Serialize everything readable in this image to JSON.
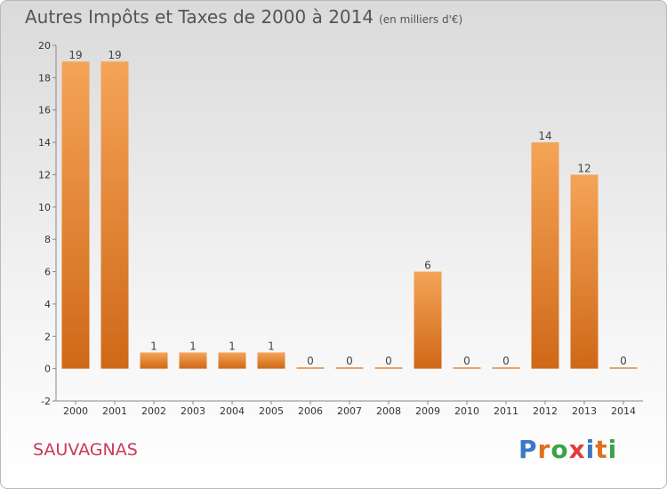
{
  "title": "Autres Impôts et Taxes de 2000 à 2014",
  "unit": "(en milliers d'€)",
  "commune": "SAUVAGNAS",
  "logo": {
    "letters": [
      "P",
      "r",
      "o",
      "x",
      "i",
      "t",
      "i"
    ],
    "colors": [
      "#3a78c8",
      "#e0701e",
      "#3aa346",
      "#e33d3d",
      "#3a78c8",
      "#e0701e",
      "#3aa346"
    ]
  },
  "chart_data": {
    "type": "bar",
    "categories": [
      "2000",
      "2001",
      "2002",
      "2003",
      "2004",
      "2005",
      "2006",
      "2007",
      "2008",
      "2009",
      "2010",
      "2011",
      "2012",
      "2013",
      "2014"
    ],
    "values": [
      19,
      19,
      1,
      1,
      1,
      1,
      0,
      0,
      0,
      6,
      0,
      0,
      14,
      12,
      0
    ],
    "ylim": [
      -2,
      20
    ],
    "yticks": [
      -2,
      0,
      2,
      4,
      6,
      8,
      10,
      12,
      14,
      16,
      18,
      20
    ],
    "bar_color": "#e8872c",
    "grid": false
  }
}
